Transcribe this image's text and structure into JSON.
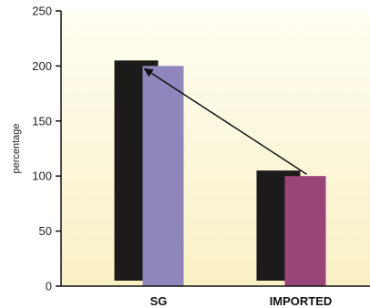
{
  "chart_data": {
    "type": "bar",
    "categories": [
      "SG",
      "IMPORTED"
    ],
    "values": [
      200,
      100
    ],
    "shadow_values": [
      205,
      105
    ],
    "ylabel": "percentage",
    "xlabel": "",
    "ylim": [
      0,
      250
    ],
    "yticks": [
      0,
      50,
      100,
      150,
      200,
      250
    ],
    "grid": false,
    "annotation": "arrow from IMPORTED bar top to SG bar top",
    "colors": {
      "bars": [
        "#8f87bb",
        "#9a4578"
      ],
      "shadow": "#1c1a1a",
      "background_top": "#fffef2",
      "background_bottom": "#f9f0c4",
      "axis": "#111111"
    }
  }
}
